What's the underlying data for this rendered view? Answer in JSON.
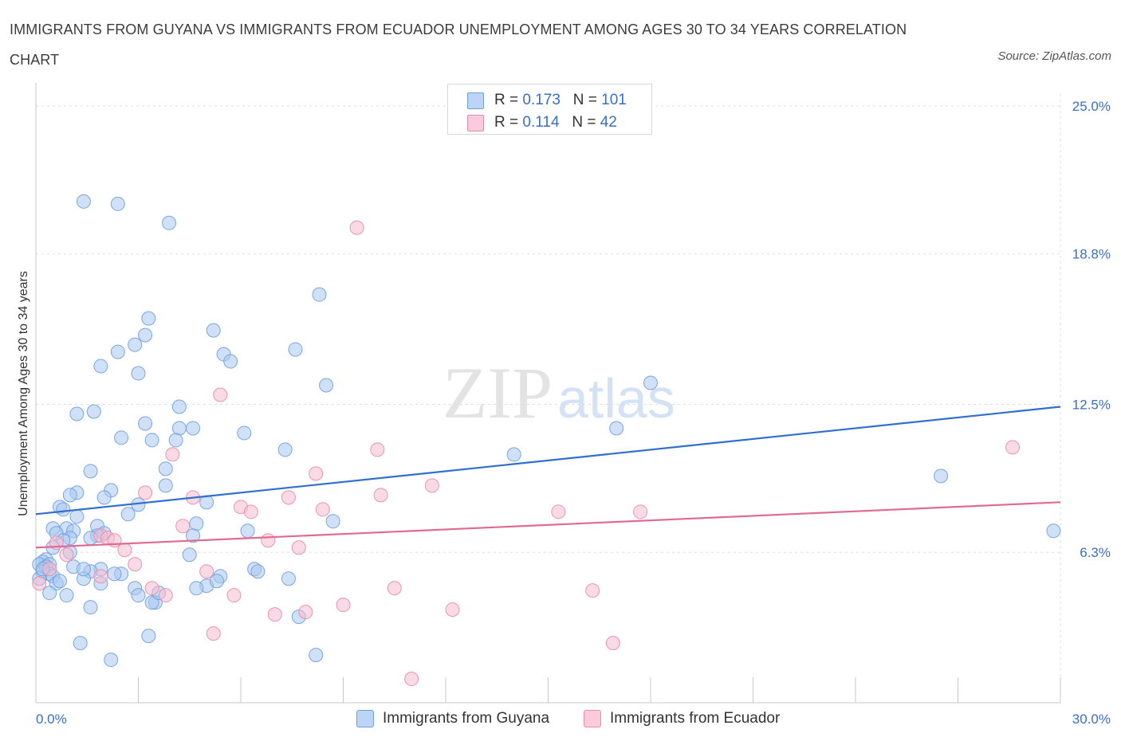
{
  "title": "IMMIGRANTS FROM GUYANA VS IMMIGRANTS FROM ECUADOR UNEMPLOYMENT AMONG AGES 30 TO 34 YEARS CORRELATION CHART",
  "source": "Source: ZipAtlas.com",
  "watermark": {
    "zip": "ZIP",
    "atlas": "atlas"
  },
  "colors": {
    "blue_fill": "#a9c8f0",
    "blue_stroke": "#6b9fe0",
    "blue_line": "#2f6fcf",
    "pink_fill": "#f6bcd0",
    "pink_stroke": "#e98aaa",
    "pink_line": "#e06a92",
    "axis_text": "#3a6fc4",
    "grid": "#dddddd"
  },
  "legend": {
    "rows": [
      {
        "r_label": "R = ",
        "r_value": "0.173",
        "n_label": "N = ",
        "n_value": "101"
      },
      {
        "r_label": "R = ",
        "r_value": "0.114",
        "n_label": "N = ",
        "n_value": "42"
      }
    ]
  },
  "chart_data": {
    "type": "scatter",
    "title": "IMMIGRANTS FROM GUYANA VS IMMIGRANTS FROM ECUADOR UNEMPLOYMENT AMONG AGES 30 TO 34 YEARS CORRELATION CHART",
    "xlabel": "",
    "ylabel": "Unemployment Among Ages 30 to 34 years",
    "xlim": [
      0,
      30
    ],
    "ylim": [
      0,
      25.5
    ],
    "x_tick_labels": [
      "0.0%",
      "30.0%"
    ],
    "y_ticks": [
      6.3,
      12.5,
      18.8,
      25.0
    ],
    "y_tick_labels": [
      "6.3%",
      "12.5%",
      "18.8%",
      "25.0%"
    ],
    "grid": true,
    "legend_position": "top-center",
    "series": [
      {
        "name": "Immigrants from Guyana",
        "color": "#a9c8f0",
        "trend": {
          "x": [
            0,
            30
          ],
          "y": [
            7.9,
            12.4
          ]
        },
        "points": [
          [
            1.4,
            21.0
          ],
          [
            2.4,
            20.9
          ],
          [
            3.9,
            20.1
          ],
          [
            8.3,
            17.1
          ],
          [
            3.3,
            16.1
          ],
          [
            5.2,
            15.6
          ],
          [
            3.2,
            15.4
          ],
          [
            2.9,
            15.0
          ],
          [
            7.6,
            14.8
          ],
          [
            2.4,
            14.7
          ],
          [
            5.5,
            14.6
          ],
          [
            5.7,
            14.3
          ],
          [
            1.9,
            14.1
          ],
          [
            3.0,
            13.8
          ],
          [
            8.5,
            13.3
          ],
          [
            18.0,
            13.4
          ],
          [
            4.2,
            12.4
          ],
          [
            1.7,
            12.2
          ],
          [
            1.2,
            12.1
          ],
          [
            3.2,
            11.7
          ],
          [
            4.6,
            11.5
          ],
          [
            4.2,
            11.5
          ],
          [
            17.0,
            11.5
          ],
          [
            6.1,
            11.3
          ],
          [
            2.5,
            11.1
          ],
          [
            3.4,
            11.0
          ],
          [
            4.1,
            11.0
          ],
          [
            7.3,
            10.6
          ],
          [
            14.0,
            10.4
          ],
          [
            3.8,
            9.8
          ],
          [
            1.6,
            9.7
          ],
          [
            26.5,
            9.5
          ],
          [
            3.8,
            9.1
          ],
          [
            2.2,
            8.9
          ],
          [
            1.2,
            8.8
          ],
          [
            1.0,
            8.7
          ],
          [
            2.0,
            8.6
          ],
          [
            5.0,
            8.4
          ],
          [
            3.0,
            8.3
          ],
          [
            0.7,
            8.2
          ],
          [
            0.8,
            8.1
          ],
          [
            2.7,
            7.9
          ],
          [
            1.2,
            7.8
          ],
          [
            8.7,
            7.6
          ],
          [
            4.7,
            7.5
          ],
          [
            1.8,
            7.4
          ],
          [
            0.5,
            7.3
          ],
          [
            0.9,
            7.3
          ],
          [
            6.2,
            7.2
          ],
          [
            1.1,
            7.2
          ],
          [
            0.6,
            7.1
          ],
          [
            2.0,
            7.1
          ],
          [
            29.8,
            7.2
          ],
          [
            4.6,
            7.0
          ],
          [
            1.8,
            7.0
          ],
          [
            1.0,
            6.9
          ],
          [
            1.6,
            6.9
          ],
          [
            0.8,
            6.8
          ],
          [
            0.5,
            6.5
          ],
          [
            1.0,
            6.3
          ],
          [
            4.5,
            6.2
          ],
          [
            0.3,
            6.0
          ],
          [
            0.2,
            5.9
          ],
          [
            0.1,
            5.8
          ],
          [
            0.4,
            5.8
          ],
          [
            1.1,
            5.7
          ],
          [
            0.3,
            5.7
          ],
          [
            1.9,
            5.6
          ],
          [
            6.4,
            5.6
          ],
          [
            6.5,
            5.5
          ],
          [
            1.6,
            5.5
          ],
          [
            0.2,
            5.5
          ],
          [
            0.4,
            5.4
          ],
          [
            2.5,
            5.4
          ],
          [
            2.3,
            5.4
          ],
          [
            5.4,
            5.3
          ],
          [
            0.5,
            5.3
          ],
          [
            0.1,
            5.2
          ],
          [
            7.4,
            5.2
          ],
          [
            1.4,
            5.2
          ],
          [
            0.6,
            5.0
          ],
          [
            1.9,
            5.0
          ],
          [
            5.0,
            4.9
          ],
          [
            4.7,
            4.8
          ],
          [
            2.9,
            4.8
          ],
          [
            0.4,
            4.6
          ],
          [
            0.9,
            4.5
          ],
          [
            3.0,
            4.5
          ],
          [
            3.5,
            4.2
          ],
          [
            3.4,
            4.2
          ],
          [
            1.6,
            4.0
          ],
          [
            7.7,
            3.6
          ],
          [
            3.3,
            2.8
          ],
          [
            1.3,
            2.5
          ],
          [
            8.2,
            2.0
          ],
          [
            2.2,
            1.8
          ],
          [
            0.2,
            5.6
          ],
          [
            0.7,
            5.1
          ],
          [
            1.4,
            5.6
          ],
          [
            5.3,
            5.1
          ],
          [
            3.6,
            4.6
          ]
        ]
      },
      {
        "name": "Immigrants from Ecuador",
        "color": "#f6bcd0",
        "trend": {
          "x": [
            0,
            30
          ],
          "y": [
            6.5,
            8.4
          ]
        },
        "points": [
          [
            9.4,
            19.9
          ],
          [
            5.4,
            12.9
          ],
          [
            10.0,
            10.6
          ],
          [
            28.6,
            10.7
          ],
          [
            4.0,
            10.4
          ],
          [
            8.2,
            9.6
          ],
          [
            11.6,
            9.1
          ],
          [
            3.2,
            8.8
          ],
          [
            10.1,
            8.7
          ],
          [
            4.6,
            8.6
          ],
          [
            7.4,
            8.6
          ],
          [
            6.0,
            8.2
          ],
          [
            8.4,
            8.1
          ],
          [
            15.3,
            8.0
          ],
          [
            17.7,
            8.0
          ],
          [
            6.3,
            8.0
          ],
          [
            4.3,
            7.4
          ],
          [
            1.9,
            7.0
          ],
          [
            2.1,
            6.9
          ],
          [
            2.3,
            6.8
          ],
          [
            6.8,
            6.8
          ],
          [
            0.6,
            6.7
          ],
          [
            7.7,
            6.5
          ],
          [
            2.6,
            6.4
          ],
          [
            0.9,
            6.2
          ],
          [
            2.9,
            5.8
          ],
          [
            0.4,
            5.6
          ],
          [
            5.0,
            5.5
          ],
          [
            1.9,
            5.3
          ],
          [
            3.4,
            4.8
          ],
          [
            10.5,
            4.8
          ],
          [
            16.3,
            4.7
          ],
          [
            3.8,
            4.5
          ],
          [
            5.8,
            4.5
          ],
          [
            9.0,
            4.1
          ],
          [
            12.2,
            3.9
          ],
          [
            7.9,
            3.8
          ],
          [
            7.0,
            3.7
          ],
          [
            5.2,
            2.9
          ],
          [
            16.9,
            2.5
          ],
          [
            11.0,
            1.0
          ],
          [
            0.1,
            5.0
          ]
        ]
      }
    ]
  },
  "bottom_legend": [
    "Immigrants from Guyana",
    "Immigrants from Ecuador"
  ]
}
